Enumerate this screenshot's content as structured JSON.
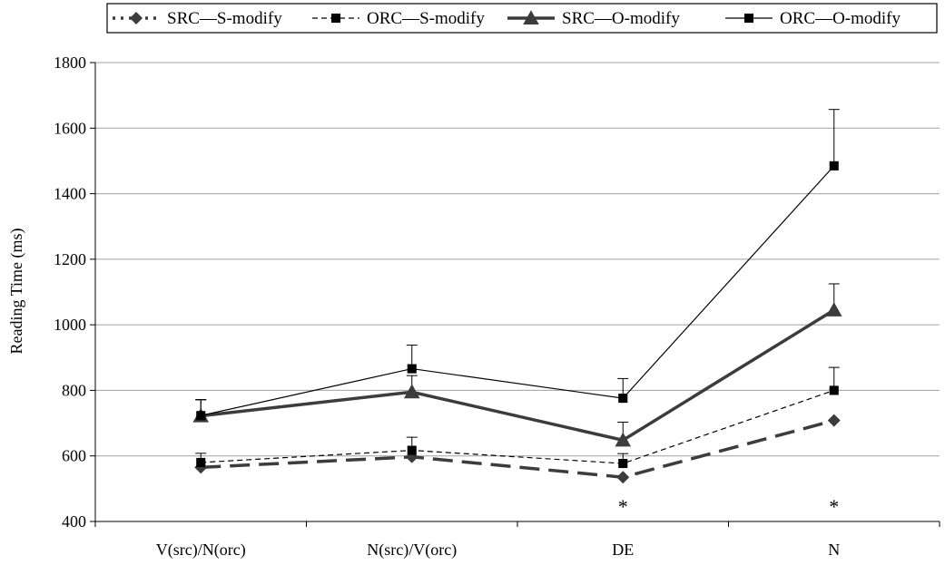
{
  "chart_data": {
    "type": "line",
    "ylabel": "Reading Time (ms)",
    "xlabel": "",
    "ylim": [
      400,
      1800
    ],
    "yticks": [
      400,
      600,
      800,
      1000,
      1200,
      1400,
      1600,
      1800
    ],
    "grid": "horizontal",
    "legend_position": "top",
    "categories": [
      "V(src)/N(orc)",
      "N(src)/V(orc)",
      "DE",
      "N"
    ],
    "series": [
      {
        "name": "SRC—S-modify",
        "values": [
          565,
          597,
          535,
          708
        ],
        "errors": [
          null,
          null,
          null,
          null
        ],
        "color": "#3c3c3c",
        "marker": "diamond",
        "line_style": "long-dash"
      },
      {
        "name": "ORC—S-modify",
        "values": [
          580,
          617,
          577,
          800
        ],
        "errors": [
          28,
          40,
          30,
          70
        ],
        "color": "#000000",
        "marker": "square",
        "line_style": "short-dash"
      },
      {
        "name": "SRC—O-modify",
        "values": [
          722,
          795,
          648,
          1045
        ],
        "errors": [
          50,
          50,
          55,
          80
        ],
        "color": "#3c3c3c",
        "marker": "triangle",
        "line_style": "solid-thick"
      },
      {
        "name": "ORC—O-modify",
        "values": [
          723,
          866,
          776,
          1485
        ],
        "errors": [
          48,
          72,
          60,
          172
        ],
        "color": "#000000",
        "marker": "square",
        "line_style": "solid-thin"
      }
    ],
    "annotations": [
      {
        "category": "DE",
        "text": "*"
      },
      {
        "category": "N",
        "text": "*"
      }
    ]
  }
}
